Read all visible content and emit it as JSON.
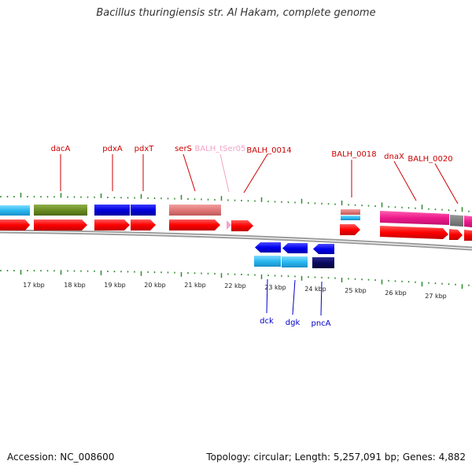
{
  "title": "Bacillus thuringiensis str. Al Hakam, complete genome",
  "footer": {
    "accession": "Accession: NC_008600",
    "topology": "Topology: circular; Length: 5,257,091 bp; Genes: 4,882"
  },
  "scale": {
    "unit": "kbp",
    "labels": [
      "17 kbp",
      "18 kbp",
      "19 kbp",
      "20 kbp",
      "21 kbp",
      "22 kbp",
      "23 kbp",
      "24 kbp",
      "25 kbp",
      "26 kbp",
      "27 kbp"
    ]
  },
  "colors": {
    "backbone": "#777777",
    "tick": "#2e8b2e",
    "forward_cds": "#ff0000",
    "label_red": "#cc0000",
    "label_blue": "#0000cc",
    "label_pink": "#f4a3c6"
  },
  "gene_labels_top": [
    {
      "name": "dacA",
      "color": "#cc0000"
    },
    {
      "name": "pdxA",
      "color": "#cc0000"
    },
    {
      "name": "pdxT",
      "color": "#cc0000"
    },
    {
      "name": "serS",
      "color": "#cc0000"
    },
    {
      "name": "BALH_tSer05",
      "color": "#f4a3c6"
    },
    {
      "name": "BALH_0014",
      "color": "#cc0000"
    },
    {
      "name": "BALH_0018",
      "color": "#cc0000"
    },
    {
      "name": "dnaX",
      "color": "#cc0000"
    },
    {
      "name": "BALH_0020",
      "color": "#cc0000"
    }
  ],
  "gene_labels_bottom": [
    {
      "name": "dck",
      "color": "#0000cc"
    },
    {
      "name": "dgk",
      "color": "#0000cc"
    },
    {
      "name": "pncA",
      "color": "#0000cc"
    }
  ]
}
